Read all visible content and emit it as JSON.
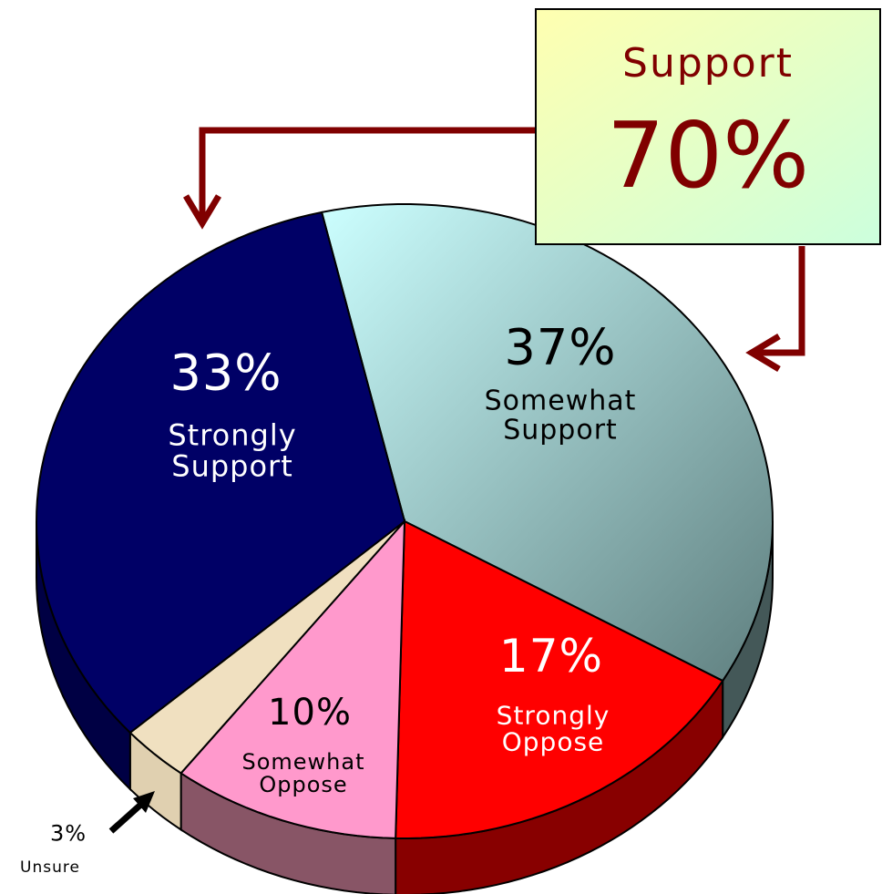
{
  "chart_data": {
    "type": "pie",
    "categories": [
      "Somewhat Support",
      "Strongly Oppose",
      "Somewhat Oppose",
      "Unsure",
      "Strongly Support"
    ],
    "values": [
      37,
      17,
      10,
      3,
      33
    ],
    "value_labels": [
      "37%",
      "17%",
      "10%",
      "3%",
      "33%"
    ],
    "colors": [
      "#bfeeee",
      "#ff0000",
      "#ff99cc",
      "#f0e0c0",
      "#000066"
    ],
    "annotation": {
      "title": "Support",
      "value": "70%"
    }
  }
}
